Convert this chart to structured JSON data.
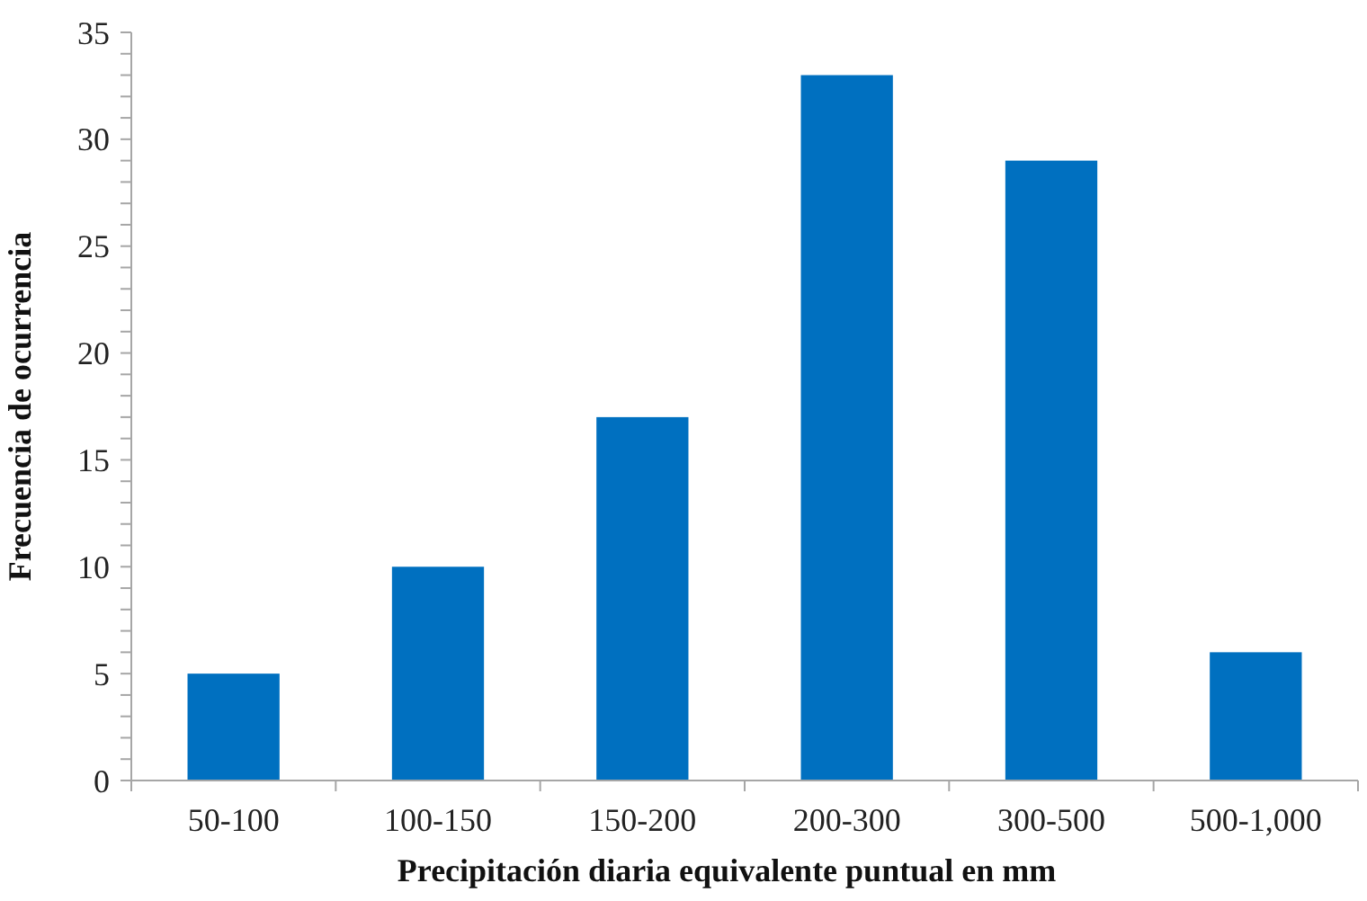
{
  "chart_data": {
    "type": "bar",
    "xlabel": "Precipitación diaria equivalente puntual en mm",
    "ylabel": "Frecuencia de ocurrencia",
    "categories": [
      "50-100",
      "100-150",
      "150-200",
      "200-300",
      "300-500",
      "500-1,000"
    ],
    "values": [
      5,
      10,
      17,
      33,
      29,
      6
    ],
    "color": "#0070c0",
    "ylim": [
      0,
      35
    ],
    "yticks": [
      0,
      {
        "value": 1,
        "label": null
      },
      {
        "value": 2,
        "label": null
      },
      {
        "value": 3,
        "label": null
      },
      {
        "value": 4,
        "label": null
      },
      5,
      {
        "value": 6,
        "label": null
      },
      {
        "value": 7,
        "label": null
      },
      {
        "value": 8,
        "label": null
      },
      {
        "value": 9,
        "label": null
      },
      10,
      {
        "value": 11,
        "label": null
      },
      {
        "value": 12,
        "label": null
      },
      {
        "value": 13,
        "label": null
      },
      {
        "value": 14,
        "label": null
      },
      15,
      {
        "value": 16,
        "label": null
      },
      {
        "value": 17,
        "label": null
      },
      {
        "value": 18,
        "label": null
      },
      {
        "value": 19,
        "label": null
      },
      20,
      {
        "value": 21,
        "label": null
      },
      {
        "value": 22,
        "label": null
      },
      {
        "value": 23,
        "label": null
      },
      {
        "value": 24,
        "label": null
      },
      25,
      {
        "value": 26,
        "label": null
      },
      {
        "value": 27,
        "label": null
      },
      {
        "value": 28,
        "label": null
      },
      {
        "value": 29,
        "label": null
      },
      30,
      {
        "value": 31,
        "label": null
      },
      {
        "value": 32,
        "label": null
      },
      {
        "value": 33,
        "label": null
      },
      {
        "value": 34,
        "label": null
      },
      35
    ],
    "grid": false
  }
}
